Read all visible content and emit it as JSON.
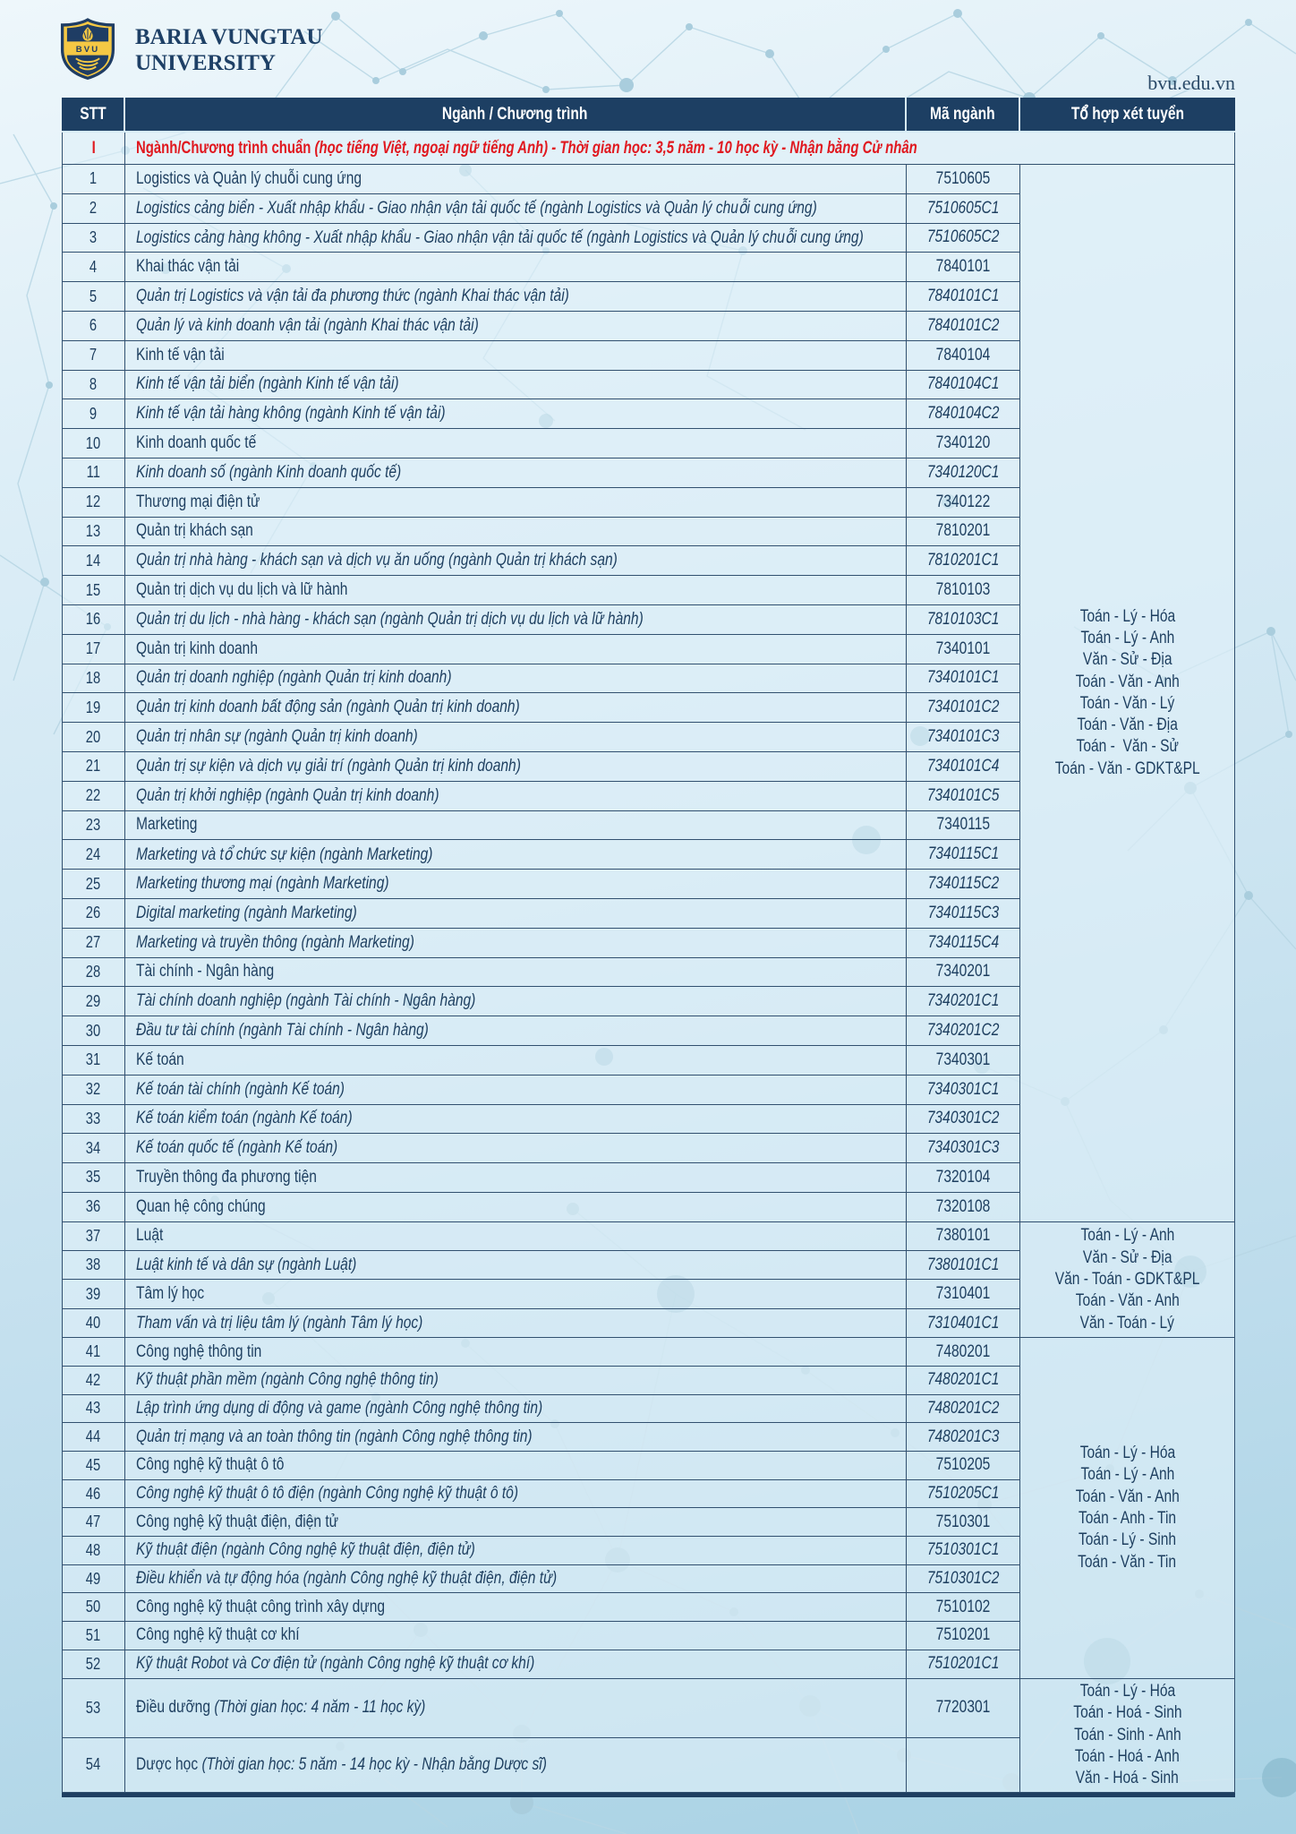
{
  "logo": {
    "acronym": "BVU",
    "name_line1": "BARIA VUNGTAU",
    "name_line2": "UNIVERSITY"
  },
  "website": "bvu.edu.vn",
  "colors": {
    "header_bg": "#1d3f63",
    "border": "#31506f",
    "text_navy": "#1d3e5f",
    "red": "#e0181f",
    "logo_navy": "#1f3d64",
    "logo_yellow": "#f5c844"
  },
  "table": {
    "headers": [
      "STT",
      "Ngành / Chương trình",
      "Mã ngành",
      "Tổ hợp xét tuyển"
    ],
    "section": {
      "stt": "I",
      "title_regular": "Ngành/Chương trình chuẩn ",
      "title_italic": "(học tiếng Việt, ngoại ngữ tiếng Anh) - Thời gian học: 3,5 năm - 10 học kỳ - Nhận bằng Cử nhân"
    },
    "rows": [
      {
        "stt": "1",
        "name": "Logistics và Quản lý chuỗi cung ứng",
        "code": "7510605",
        "italic": false
      },
      {
        "stt": "2",
        "name": "Logistics cảng biển - Xuất nhập khẩu - Giao nhận vận tải quốc tế (ngành Logistics và Quản lý chuỗi cung ứng)",
        "code": "7510605C1",
        "italic": true
      },
      {
        "stt": "3",
        "name": "Logistics cảng hàng không - Xuất nhập khẩu - Giao nhận vận tải quốc tế (ngành Logistics và Quản lý chuỗi cung ứng)",
        "code": "7510605C2",
        "italic": true
      },
      {
        "stt": "4",
        "name": "Khai thác vận tải",
        "code": "7840101",
        "italic": false
      },
      {
        "stt": "5",
        "name": "Quản trị Logistics và vận tải đa phương thức (ngành Khai thác vận tải)",
        "code": "7840101C1",
        "italic": true
      },
      {
        "stt": "6",
        "name": "Quản lý và kinh doanh vận tải (ngành Khai thác vận tải)",
        "code": "7840101C2",
        "italic": true
      },
      {
        "stt": "7",
        "name": "Kinh tế vận tải",
        "code": "7840104",
        "italic": false
      },
      {
        "stt": "8",
        "name": "Kinh tế vận tải biển (ngành Kinh tế vận tải)",
        "code": "7840104C1",
        "italic": true
      },
      {
        "stt": "9",
        "name": "Kinh tế vận tải hàng không (ngành Kinh tế vận tải)",
        "code": "7840104C2",
        "italic": true
      },
      {
        "stt": "10",
        "name": "Kinh doanh quốc tế",
        "code": "7340120",
        "italic": false
      },
      {
        "stt": "11",
        "name": "Kinh doanh số (ngành Kinh doanh quốc tế)",
        "code": "7340120C1",
        "italic": true
      },
      {
        "stt": "12",
        "name": "Thương mại điện tử",
        "code": "7340122",
        "italic": false
      },
      {
        "stt": "13",
        "name": "Quản trị khách sạn",
        "code": "7810201",
        "italic": false
      },
      {
        "stt": "14",
        "name": "Quản trị nhà hàng - khách sạn và dịch vụ ăn uống (ngành Quản trị khách sạn)",
        "code": "7810201C1",
        "italic": true
      },
      {
        "stt": "15",
        "name": "Quản trị dịch vụ du lịch và lữ hành",
        "code": "7810103",
        "italic": false
      },
      {
        "stt": "16",
        "name": "Quản trị du lịch - nhà hàng - khách sạn (ngành Quản trị dịch vụ du lịch và lữ hành)",
        "code": "7810103C1",
        "italic": true
      },
      {
        "stt": "17",
        "name": "Quản trị kinh doanh",
        "code": "7340101",
        "italic": false
      },
      {
        "stt": "18",
        "name": "Quản trị doanh nghiệp (ngành Quản trị kinh doanh)",
        "code": "7340101C1",
        "italic": true
      },
      {
        "stt": "19",
        "name": "Quản trị kinh doanh bất động sản (ngành Quản trị kinh doanh)",
        "code": "7340101C2",
        "italic": true
      },
      {
        "stt": "20",
        "name": "Quản trị nhân sự (ngành Quản trị kinh doanh)",
        "code": "7340101C3",
        "italic": true
      },
      {
        "stt": "21",
        "name": "Quản trị sự kiện và dịch vụ giải trí (ngành Quản trị kinh doanh)",
        "code": "7340101C4",
        "italic": true
      },
      {
        "stt": "22",
        "name": "Quản trị khởi nghiệp (ngành Quản trị kinh doanh)",
        "code": "7340101C5",
        "italic": true
      },
      {
        "stt": "23",
        "name": "Marketing",
        "code": "7340115",
        "italic": false
      },
      {
        "stt": "24",
        "name": "Marketing và tổ chức sự kiện (ngành Marketing)",
        "code": "7340115C1",
        "italic": true
      },
      {
        "stt": "25",
        "name": "Marketing thương mại (ngành Marketing)",
        "code": "7340115C2",
        "italic": true
      },
      {
        "stt": "26",
        "name": "Digital marketing (ngành Marketing)",
        "code": "7340115C3",
        "italic": true
      },
      {
        "stt": "27",
        "name": "Marketing và truyền thông (ngành Marketing)",
        "code": "7340115C4",
        "italic": true
      },
      {
        "stt": "28",
        "name": "Tài chính - Ngân hàng",
        "code": "7340201",
        "italic": false
      },
      {
        "stt": "29",
        "name": "Tài chính doanh nghiệp (ngành Tài chính - Ngân hàng)",
        "code": "7340201C1",
        "italic": true
      },
      {
        "stt": "30",
        "name": "Đầu tư tài chính (ngành Tài chính - Ngân hàng)",
        "code": "7340201C2",
        "italic": true
      },
      {
        "stt": "31",
        "name": "Kế toán",
        "code": "7340301",
        "italic": false
      },
      {
        "stt": "32",
        "name": "Kế toán tài chính (ngành Kế toán)",
        "code": "7340301C1",
        "italic": true
      },
      {
        "stt": "33",
        "name": "Kế toán kiểm toán (ngành Kế toán)",
        "code": "7340301C2",
        "italic": true
      },
      {
        "stt": "34",
        "name": "Kế toán quốc tế (ngành Kế toán)",
        "code": "7340301C3",
        "italic": true
      },
      {
        "stt": "35",
        "name": "Truyền thông đa phương tiện",
        "code": "7320104",
        "italic": false
      },
      {
        "stt": "36",
        "name": "Quan hệ công chúng",
        "code": "7320108",
        "italic": false
      },
      {
        "stt": "37",
        "name": "Luật",
        "code": "7380101",
        "italic": false
      },
      {
        "stt": "38",
        "name": "Luật kinh tế và dân sự (ngành Luật)",
        "code": "7380101C1",
        "italic": true
      },
      {
        "stt": "39",
        "name": "Tâm lý học",
        "code": "7310401",
        "italic": false
      },
      {
        "stt": "40",
        "name": "Tham vấn và trị liệu tâm lý (ngành Tâm lý học)",
        "code": "7310401C1",
        "italic": true
      },
      {
        "stt": "41",
        "name": "Công nghệ thông tin",
        "code": "7480201",
        "italic": false
      },
      {
        "stt": "42",
        "name": "Kỹ thuật phần mềm (ngành Công nghệ thông tin)",
        "code": "7480201C1",
        "italic": true
      },
      {
        "stt": "43",
        "name": "Lập trình ứng dụng di động và game (ngành Công nghệ thông tin)",
        "code": "7480201C2",
        "italic": true
      },
      {
        "stt": "44",
        "name": "Quản trị mạng và an toàn thông tin (ngành Công nghệ thông tin)",
        "code": "7480201C3",
        "italic": true
      },
      {
        "stt": "45",
        "name": "Công nghệ kỹ thuật ô tô",
        "code": "7510205",
        "italic": false
      },
      {
        "stt": "46",
        "name": "Công nghệ kỹ thuật ô tô điện (ngành Công nghệ kỹ thuật ô tô)",
        "code": "7510205C1",
        "italic": true
      },
      {
        "stt": "47",
        "name": "Công nghệ kỹ thuật điện, điện tử",
        "code": "7510301",
        "italic": false
      },
      {
        "stt": "48",
        "name": "Kỹ thuật điện (ngành Công nghệ kỹ thuật điện, điện tử)",
        "code": "7510301C1",
        "italic": true
      },
      {
        "stt": "49",
        "name": "Điều khiển và tự động hóa (ngành Công nghệ kỹ thuật điện, điện tử)",
        "code": "7510301C2",
        "italic": true
      },
      {
        "stt": "50",
        "name": "Công nghệ kỹ thuật công trình xây dựng",
        "code": "7510102",
        "italic": false
      },
      {
        "stt": "51",
        "name": "Công nghệ kỹ thuật cơ khí",
        "code": "7510201",
        "italic": false
      },
      {
        "stt": "52",
        "name": "Kỹ thuật Robot và Cơ điện tử (ngành Công nghệ kỹ thuật cơ khí)",
        "code": "7510201C1",
        "italic": true
      },
      {
        "stt": "53",
        "name": "Điều dưỡng ",
        "note": "(Thời gian học: 4 năm - 11 học kỳ)",
        "code": "7720301",
        "italic": false
      },
      {
        "stt": "54",
        "name": "Dược học ",
        "note": "(Thời gian học: 5 năm - 14 học kỳ - Nhận bằng Dược sĩ)",
        "code": "",
        "italic": false
      }
    ],
    "tohop_groups": [
      {
        "rows_start": 1,
        "rows_end": 36,
        "lines": [
          "Toán - Lý - Hóa",
          "Toán - Lý - Anh",
          "Văn - Sử - Địa",
          "Toán - Văn - Anh",
          "Toán - Văn - Lý",
          "Toán - Văn - Địa",
          "Toán -  Văn - Sử",
          "Toán - Văn - GDKT&PL"
        ]
      },
      {
        "rows_start": 37,
        "rows_end": 40,
        "lines": [
          "Toán - Lý - Anh",
          "Văn - Sử - Địa",
          "Văn - Toán - GDKT&PL",
          "Toán - Văn - Anh",
          "Văn - Toán - Lý"
        ]
      },
      {
        "rows_start": 41,
        "rows_end": 52,
        "lines": [
          "Toán - Lý - Hóa",
          "Toán - Lý - Anh",
          "Toán - Văn - Anh",
          "Toán - Anh - Tin",
          "Toán - Lý - Sinh",
          "Toán - Văn - Tin"
        ]
      },
      {
        "rows_start": 53,
        "rows_end": 54,
        "lines": [
          "Toán - Lý - Hóa",
          "Toán - Hoá - Sinh",
          "Toán - Sinh - Anh",
          "Toán - Hoá - Anh",
          "Văn - Hoá - Sinh"
        ]
      }
    ]
  }
}
